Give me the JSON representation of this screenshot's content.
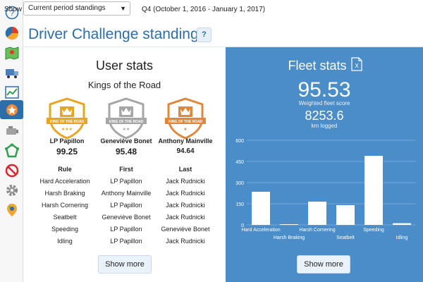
{
  "topbar": {
    "show_label": "Show",
    "select_value": "Current period standings",
    "period": "Q4 (October 1, 2016 - January 1, 2017)"
  },
  "page_title": "Driver Challenge standings",
  "help_label": "?",
  "sidebar": {
    "items": [
      {
        "icon": "help-icon"
      },
      {
        "icon": "pie-chart-icon"
      },
      {
        "icon": "map-icon"
      },
      {
        "icon": "truck-icon"
      },
      {
        "icon": "trend-icon"
      },
      {
        "icon": "driver-challenge-icon",
        "active": true
      },
      {
        "icon": "engine-icon"
      },
      {
        "icon": "zones-icon"
      },
      {
        "icon": "exceptions-icon"
      },
      {
        "icon": "settings-icon"
      },
      {
        "icon": "marketplace-icon"
      }
    ]
  },
  "user_stats": {
    "title": "User stats",
    "subtitle": "Kings of the Road",
    "badge_text": "KING OF THE ROAD",
    "podium": [
      {
        "name": "LP Papillon",
        "score": "99.25",
        "color": "#e9a520"
      },
      {
        "name": "Geneviève Bonet",
        "score": "95.48",
        "color": "#a6a6a6"
      },
      {
        "name": "Anthony Mainville",
        "score": "94.64",
        "color": "#e0873a"
      }
    ],
    "columns": {
      "rule": "Rule",
      "first": "First",
      "last": "Last"
    },
    "rows": [
      {
        "rule": "Hard Acceleration",
        "first": "LP Papillon",
        "last": "Jack Rudnicki"
      },
      {
        "rule": "Harsh Braking",
        "first": "Anthony Mainville",
        "last": "Jack Rudnicki"
      },
      {
        "rule": "Harsh Cornering",
        "first": "LP Papillon",
        "last": "Jack Rudnicki"
      },
      {
        "rule": "Seatbelt",
        "first": "Geneviève Bonet",
        "last": "Jack Rudnicki"
      },
      {
        "rule": "Speeding",
        "first": "LP Papillon",
        "last": "Geneviève Bonet"
      },
      {
        "rule": "Idling",
        "first": "LP Papillon",
        "last": "Jack Rudnicki"
      }
    ],
    "show_more": "Show more"
  },
  "fleet_stats": {
    "title": "Fleet stats",
    "score": "95.53",
    "score_label": "Weighted fleet score",
    "km": "8253.6",
    "km_label": "km logged",
    "show_more": "Show more"
  },
  "chart_data": {
    "type": "bar",
    "categories": [
      "Hard Acceleration",
      "Harsh Braking",
      "Harsh Cornering",
      "Seatbelt",
      "Speeding",
      "Idling"
    ],
    "values": [
      235,
      5,
      165,
      140,
      490,
      12
    ],
    "ylim": [
      0,
      600
    ],
    "yticks": [
      "0",
      "300",
      "450",
      "600"
    ],
    "ytick_values": [
      0,
      300,
      450,
      600
    ],
    "extra_ytick_label": "150",
    "colors": {
      "bar": "#ffffff",
      "grid": "#7eb0dc"
    }
  }
}
